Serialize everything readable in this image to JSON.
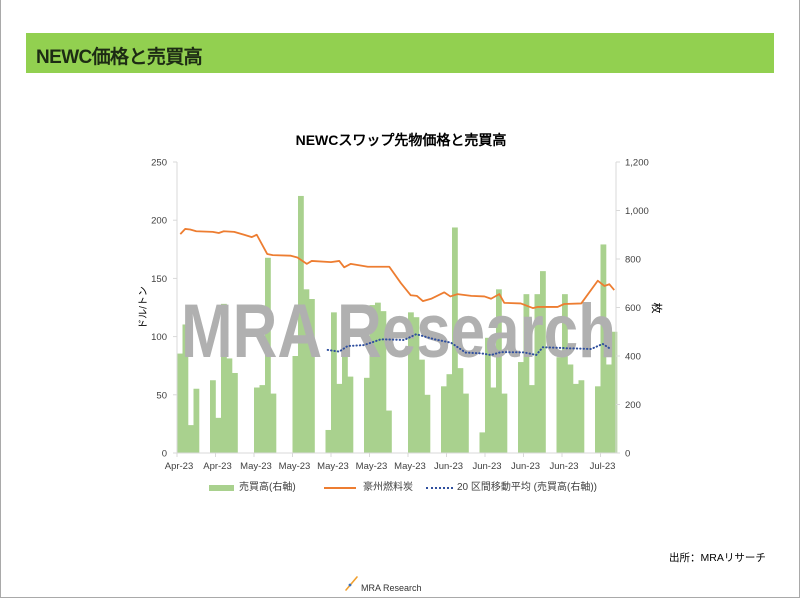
{
  "header": {
    "title": "NEWC価格と売買高"
  },
  "watermark": {
    "text": "MRA Research"
  },
  "source": {
    "text": "出所：MRAリサーチ"
  },
  "footer": {
    "logo_text": "MRA Research"
  },
  "colors": {
    "header_bg": "#92D050",
    "volume_bar": "#A9D18E",
    "price_line": "#ED7D31",
    "moving_average": "#2F4F9E",
    "axis": "#D9D9D9",
    "watermark": "#B0B0B0"
  },
  "chart_data": {
    "type": "bar",
    "combo": true,
    "title": "NEWCスワップ先物価格と売買高",
    "xlabel": "",
    "ylabel": "ドル/トン",
    "y2label": "枚",
    "ylim": [
      0,
      250
    ],
    "y2lim": [
      0,
      1200
    ],
    "yticks": [
      0,
      50,
      100,
      150,
      200,
      250
    ],
    "ytick_labels": [
      "0",
      "50",
      "100",
      "150",
      "200",
      "250"
    ],
    "y2ticks": [
      0,
      200,
      400,
      600,
      800,
      1000,
      1200
    ],
    "y2tick_labels": [
      "0",
      "200",
      "400",
      "600",
      "800",
      "1,000",
      "1,200"
    ],
    "x_day_range": [
      0,
      80
    ],
    "x_tick_days": [
      0,
      7,
      14,
      21,
      28,
      35,
      42,
      49,
      56,
      63,
      70,
      77
    ],
    "x_tick_labels": [
      "Apr-23",
      "Apr-23",
      "May-23",
      "May-23",
      "May-23",
      "May-23",
      "May-23",
      "Jun-23",
      "Jun-23",
      "Jun-23",
      "Jun-23",
      "Jul-23"
    ],
    "grid": false,
    "legend_position": "bottom",
    "series": [
      {
        "name": "売買高(右軸)",
        "type": "bar",
        "axis": "right",
        "color": "#A9D18E",
        "days": [
          0,
          1,
          2,
          3,
          6,
          7,
          8,
          9,
          10,
          14,
          15,
          16,
          17,
          21,
          22,
          23,
          24,
          27,
          28,
          29,
          30,
          31,
          34,
          35,
          36,
          37,
          38,
          42,
          43,
          44,
          45,
          48,
          49,
          50,
          51,
          52,
          55,
          56,
          57,
          58,
          59,
          62,
          63,
          64,
          65,
          66,
          69,
          70,
          71,
          72,
          73,
          76,
          77,
          78,
          79
        ],
        "values": [
          410,
          530,
          115,
          265,
          300,
          145,
          615,
          390,
          330,
          270,
          280,
          805,
          245,
          400,
          1060,
          675,
          635,
          95,
          580,
          285,
          495,
          315,
          310,
          610,
          620,
          585,
          175,
          580,
          560,
          385,
          240,
          275,
          325,
          930,
          350,
          245,
          85,
          475,
          270,
          675,
          245,
          375,
          655,
          280,
          655,
          750,
          395,
          655,
          365,
          285,
          300,
          275,
          860,
          365,
          500
        ]
      },
      {
        "name": "豪州燃料炭",
        "type": "line",
        "axis": "left",
        "color": "#ED7D31",
        "points": [
          [
            0.6,
            188
          ],
          [
            1.5,
            192.5
          ],
          [
            2.4,
            192
          ],
          [
            3.5,
            190.5
          ],
          [
            6.5,
            190
          ],
          [
            7.6,
            189
          ],
          [
            8.5,
            190.5
          ],
          [
            10.4,
            190
          ],
          [
            12.2,
            187.5
          ],
          [
            13.6,
            185.5
          ],
          [
            14.5,
            187.5
          ],
          [
            16.4,
            171
          ],
          [
            17.4,
            170
          ],
          [
            20.7,
            169.5
          ],
          [
            21.9,
            168
          ],
          [
            23.6,
            162.5
          ],
          [
            24.5,
            165
          ],
          [
            28,
            164
          ],
          [
            29.5,
            165
          ],
          [
            30.4,
            159.5
          ],
          [
            31.6,
            162.5
          ],
          [
            34.7,
            160
          ],
          [
            38.6,
            160
          ],
          [
            40.7,
            146
          ],
          [
            42.5,
            135.5
          ],
          [
            43.6,
            135
          ],
          [
            44.7,
            130.5
          ],
          [
            46.2,
            132.5
          ],
          [
            48.6,
            138
          ],
          [
            49.7,
            134.5
          ],
          [
            51,
            136.5
          ],
          [
            53.5,
            135
          ],
          [
            55.9,
            134.5
          ],
          [
            57.1,
            132.5
          ],
          [
            58.6,
            136.5
          ],
          [
            59.5,
            129
          ],
          [
            62.5,
            128.5
          ],
          [
            64.7,
            124.5
          ],
          [
            65.6,
            125.5
          ],
          [
            69.2,
            125.5
          ],
          [
            70.4,
            128
          ],
          [
            73.5,
            128.5
          ],
          [
            76.5,
            148
          ],
          [
            77.7,
            143.5
          ],
          [
            78.6,
            145
          ],
          [
            79.5,
            140
          ]
        ]
      },
      {
        "name": "20 区間移動平均 (売買高(右軸))",
        "type": "line",
        "style": "dotted",
        "axis": "right",
        "color": "#2F4F9E",
        "points": [
          [
            27.4,
            425
          ],
          [
            29.5,
            418
          ],
          [
            31,
            441
          ],
          [
            34,
            445
          ],
          [
            37.1,
            469
          ],
          [
            41.3,
            466
          ],
          [
            43.5,
            490
          ],
          [
            46.8,
            469
          ],
          [
            49.8,
            455
          ],
          [
            52.5,
            414
          ],
          [
            55.3,
            411
          ],
          [
            57.1,
            404
          ],
          [
            58.9,
            416
          ],
          [
            63.1,
            415
          ],
          [
            65.3,
            404
          ],
          [
            66.5,
            436
          ],
          [
            69.2,
            434
          ],
          [
            71,
            432
          ],
          [
            75.3,
            429
          ],
          [
            77.4,
            450
          ],
          [
            78.9,
            428
          ]
        ]
      }
    ]
  }
}
